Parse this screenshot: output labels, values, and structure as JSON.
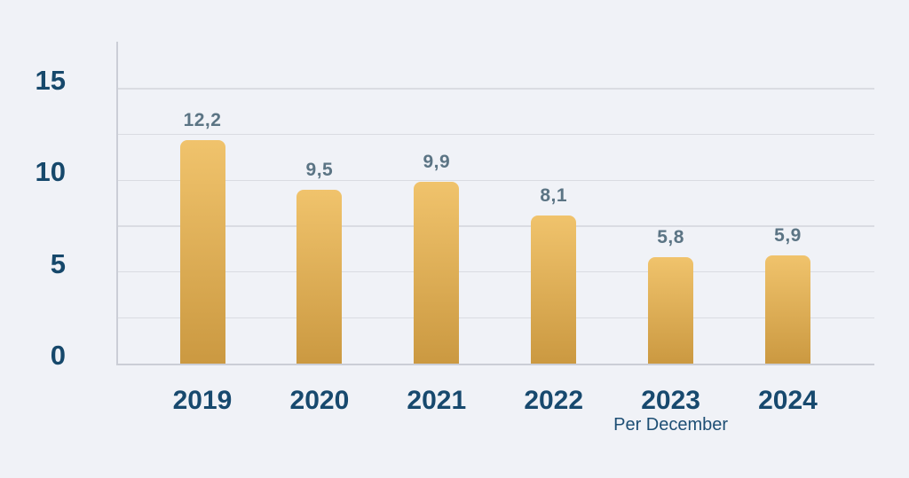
{
  "colors": {
    "background": "#f0f2f7",
    "grid": "#dadce2",
    "axis": "#cbced6",
    "bar_gradient_top": "#f0c36c",
    "bar_gradient_bottom": "#cb9941",
    "value_label": "#5b7484",
    "tick_label": "#16486b",
    "category_label": "#17496e",
    "note_label": "#1d4e74"
  },
  "chart_data": {
    "type": "bar",
    "title": "",
    "xlabel": "",
    "ylabel": "",
    "categories": [
      "2019",
      "2020",
      "2021",
      "2022",
      "2023",
      "2024"
    ],
    "values": [
      12.2,
      9.5,
      9.9,
      8.1,
      5.8,
      5.9
    ],
    "value_labels": [
      "12,2",
      "9,5",
      "9,9",
      "8,1",
      "5,8",
      "5,9"
    ],
    "decimal_separator": ",",
    "yticks": [
      0,
      5,
      10,
      15
    ],
    "ytick_labels": [
      "0",
      "5",
      "10",
      "15"
    ],
    "ylim": [
      0,
      15
    ],
    "grid": true,
    "grid_step": 2.5,
    "legend": "none",
    "note": {
      "category_index": 4,
      "text": "Per December"
    }
  }
}
